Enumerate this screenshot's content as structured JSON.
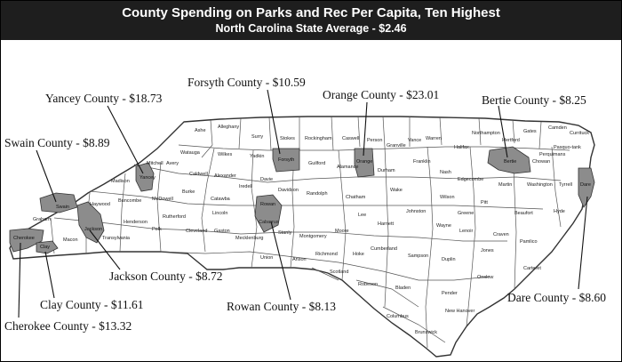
{
  "header": {
    "title": "County Spending on Parks and Rec Per Capita, Ten Highest",
    "subtitle": "North Carolina State Average - $2.46"
  },
  "colors": {
    "header_bg": "#1e1e1e",
    "highlight": "#8c8c8c",
    "county_fill": "#ffffff",
    "border": "#333333"
  },
  "callouts": [
    {
      "county": "Yancey",
      "label": "Yancey County - $18.73",
      "value": 18.73
    },
    {
      "county": "Forsyth",
      "label": "Forsyth County - $10.59",
      "value": 10.59
    },
    {
      "county": "Orange",
      "label": "Orange County - $23.01",
      "value": 23.01
    },
    {
      "county": "Bertie",
      "label": "Bertie County - $8.25",
      "value": 8.25
    },
    {
      "county": "Swain",
      "label": "Swain County - $8.89",
      "value": 8.89
    },
    {
      "county": "Jackson",
      "label": "Jackson County - $8.72",
      "value": 8.72
    },
    {
      "county": "Clay",
      "label": "Clay County - $11.61",
      "value": 11.61
    },
    {
      "county": "Cherokee",
      "label": "Cherokee County - $13.32",
      "value": 13.32
    },
    {
      "county": "Rowan",
      "label": "Rowan County - $8.13",
      "value": 8.13
    },
    {
      "county": "Dare",
      "label": "Dare County - $8.60",
      "value": 8.6
    }
  ],
  "county_names": {
    "ashe": "Ashe",
    "alleghany": "Alleghany",
    "surry": "Surry",
    "stokes": "Stokes",
    "rockingham": "Rockingham",
    "caswell": "Caswell",
    "person": "Person",
    "granville": "Granville",
    "vance": "Vance",
    "warren": "Warren",
    "northampton": "Northampton",
    "hertford": "Hertford",
    "gates": "Gates",
    "camden": "Camden",
    "currituck": "Currituck",
    "pasquotank": "Pasquo-tank",
    "perquimans": "Perquimans",
    "chowan": "Chowan",
    "halifax": "Halifax",
    "watauga": "Watauga",
    "wilkes": "Wilkes",
    "yadkin": "Yadkin",
    "forsyth": "Forsyth",
    "guilford": "Guilford",
    "alamance": "Alamance",
    "orange": "Orange",
    "durham": "Durham",
    "franklin": "Franklin",
    "nash": "Nash",
    "edgecombe": "Edgecombe",
    "bertie": "Bertie",
    "martin": "Martin",
    "washington": "Washington",
    "tyrrell": "Tyrrell",
    "dare": "Dare",
    "mitchell": "Mitchell",
    "avery": "Avery",
    "yancey": "Yancey",
    "madison": "Madison",
    "caldwell": "Caldwell",
    "alexander": "Alexander",
    "iredell": "Iredell",
    "davie": "Davie",
    "davidson": "Davidson",
    "randolph": "Randolph",
    "chatham": "Chatham",
    "wake": "Wake",
    "johnston": "Johnston",
    "wilson": "Wilson",
    "pitt": "Pitt",
    "beaufort": "Beaufort",
    "hyde": "Hyde",
    "swain": "Swain",
    "haywood": "Haywood",
    "buncombe": "Buncombe",
    "mcdowell": "McDowell",
    "burke": "Burke",
    "catawba": "Catawba",
    "lincoln": "Lincoln",
    "rowan": "Rowan",
    "cabarrus": "Cabarrus",
    "stanly": "Stanly",
    "montgomery": "Montgomery",
    "moore": "Moore",
    "lee": "Lee",
    "harnett": "Harnett",
    "wayne": "Wayne",
    "greene": "Greene",
    "lenoir": "Lenoir",
    "craven": "Craven",
    "pamlico": "Pamlico",
    "graham": "Graham",
    "jackson": "Jackson",
    "cherokee": "Cherokee",
    "clay": "Clay",
    "macon": "Macon",
    "transylvania": "Transylvania",
    "henderson": "Henderson",
    "polk": "Polk",
    "rutherford": "Rutherford",
    "cleveland": "Cleveland",
    "gaston": "Gaston",
    "mecklenburg": "Mecklenburg",
    "union": "Union",
    "anson": "Anson",
    "richmond": "Richmond",
    "scotland": "Scotland",
    "hoke": "Hoke",
    "cumberland": "Cumberland",
    "sampson": "Sampson",
    "duplin": "Duplin",
    "jones": "Jones",
    "onslow": "Onslow",
    "carteret": "Carteret",
    "robeson": "Robeson",
    "bladen": "Bladen",
    "pender": "Pender",
    "columbus": "Columbus",
    "newhanover": "New Hanover",
    "brunswick": "Brunswick"
  }
}
